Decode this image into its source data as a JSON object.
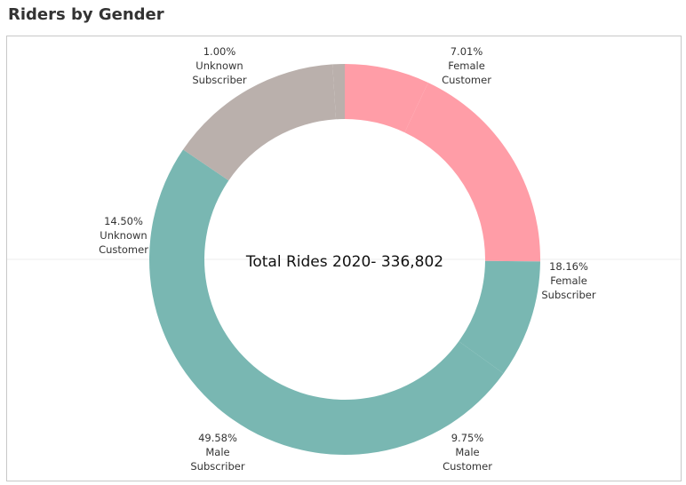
{
  "title": "Riders by Gender",
  "center_text": "Total Rides 2020- 336,802",
  "colors": {
    "female": "#ff9da7",
    "male": "#79b7b2",
    "unknown": "#bab0ac"
  },
  "chart_data": {
    "type": "pie",
    "variant": "donut",
    "title": "Riders by Gender",
    "slices": [
      {
        "pct": "7.01%",
        "value": 7.01,
        "line1": "Female",
        "line2": "Customer",
        "color": "#ff9da7"
      },
      {
        "pct": "18.16%",
        "value": 18.16,
        "line1": "Female",
        "line2": "Subscriber",
        "color": "#ff9da7"
      },
      {
        "pct": "9.75%",
        "value": 9.75,
        "line1": "Male",
        "line2": "Customer",
        "color": "#79b7b2"
      },
      {
        "pct": "49.58%",
        "value": 49.58,
        "line1": "Male",
        "line2": "Subscriber",
        "color": "#79b7b2"
      },
      {
        "pct": "14.50%",
        "value": 14.5,
        "line1": "Unknown",
        "line2": "Customer",
        "color": "#bab0ac"
      },
      {
        "pct": "1.00%",
        "value": 1.0,
        "line1": "Unknown",
        "line2": "Subscriber",
        "color": "#bab0ac"
      }
    ]
  }
}
